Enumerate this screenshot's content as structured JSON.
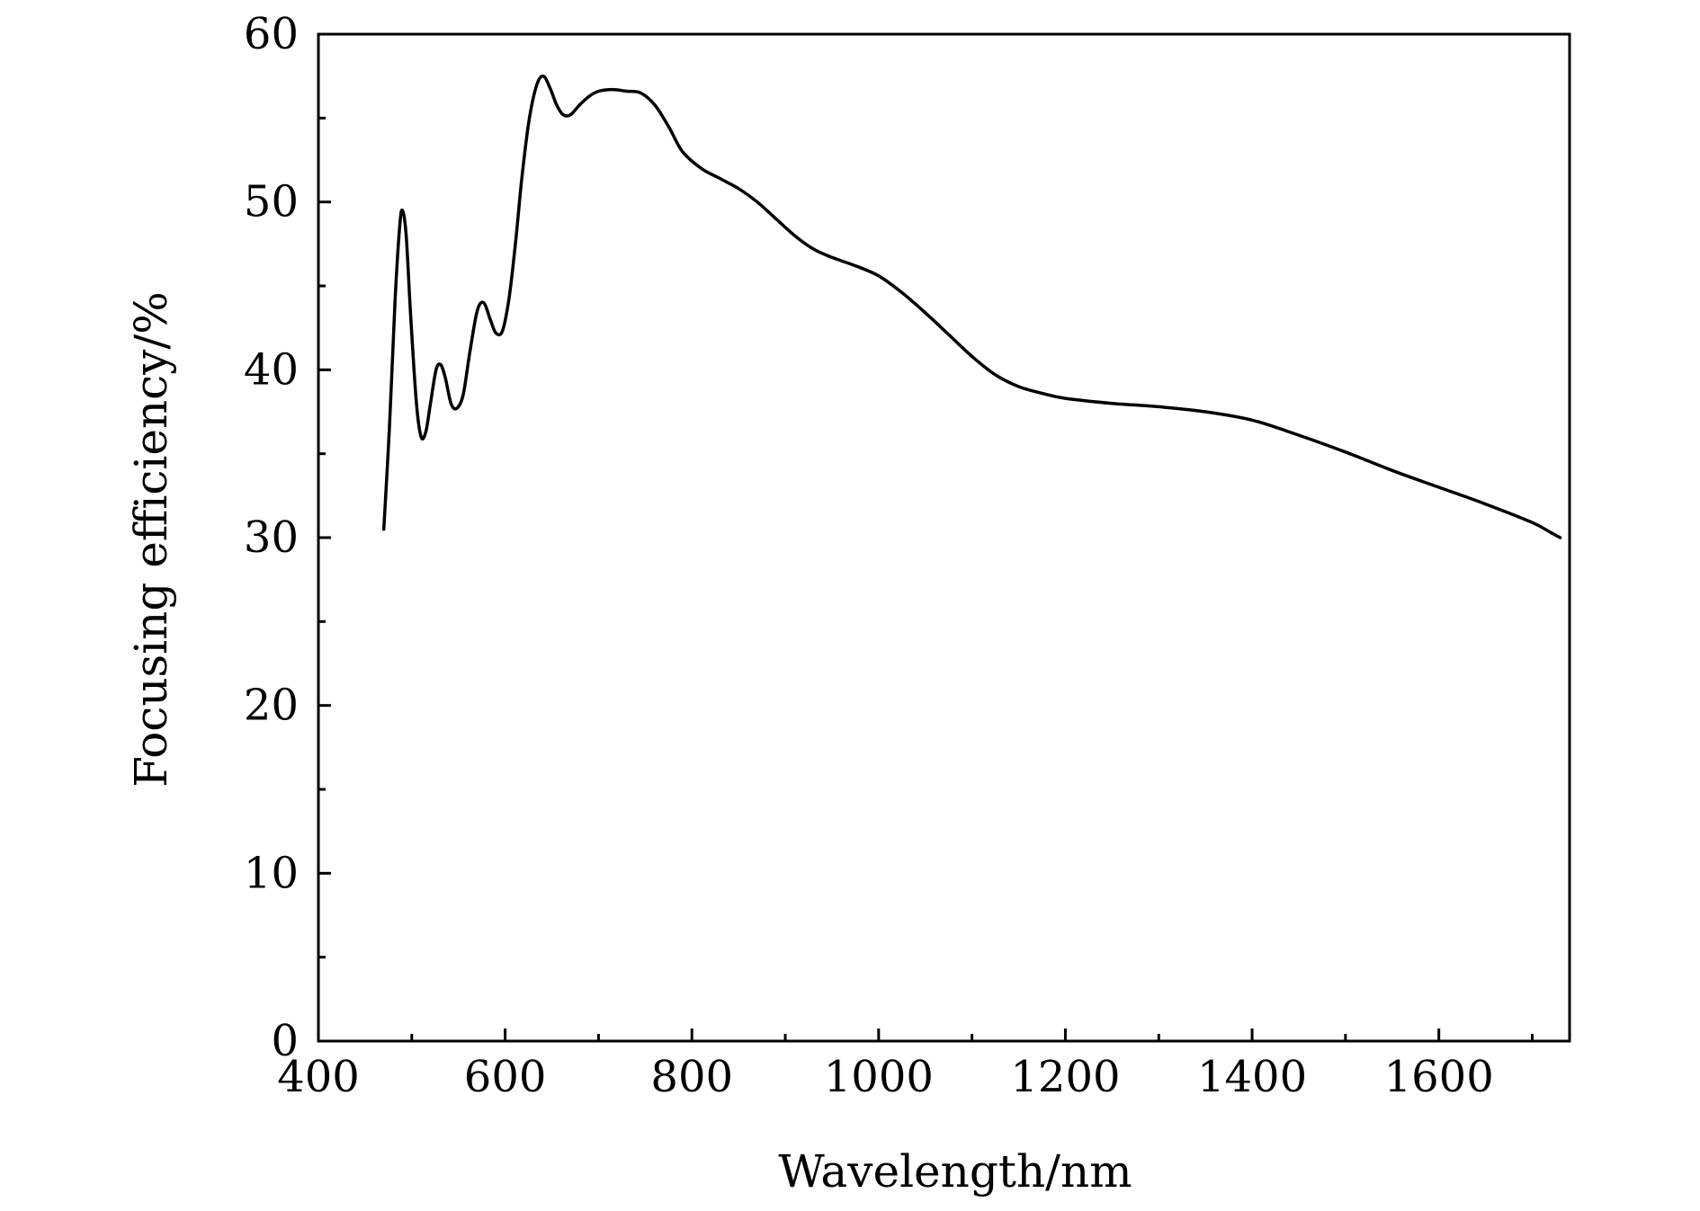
{
  "chart_data": {
    "type": "line",
    "title": "",
    "xlabel": "Wavelength/nm",
    "ylabel": "Focusing efficiency/%",
    "xlim": [
      400,
      1740
    ],
    "ylim": [
      0,
      60
    ],
    "xticks": [
      400,
      600,
      800,
      1000,
      1200,
      1400,
      1600
    ],
    "yticks": [
      0,
      10,
      20,
      30,
      40,
      50,
      60
    ],
    "x_minor_step": 100,
    "y_minor_step": 5,
    "grid": false,
    "legend": "none",
    "series": [
      {
        "color": "#000000",
        "points": [
          [
            470,
            30.5
          ],
          [
            476,
            36.5
          ],
          [
            482,
            44
          ],
          [
            487,
            48.5
          ],
          [
            490,
            49.5
          ],
          [
            494,
            48
          ],
          [
            499,
            43
          ],
          [
            505,
            38
          ],
          [
            510,
            36
          ],
          [
            515,
            36.3
          ],
          [
            520,
            38
          ],
          [
            526,
            40
          ],
          [
            531,
            40.3
          ],
          [
            536,
            39.5
          ],
          [
            542,
            38
          ],
          [
            548,
            37.7
          ],
          [
            555,
            38.5
          ],
          [
            562,
            41
          ],
          [
            570,
            43.5
          ],
          [
            577,
            44
          ],
          [
            584,
            43
          ],
          [
            590,
            42.2
          ],
          [
            597,
            42.3
          ],
          [
            604,
            44.2
          ],
          [
            611,
            47.5
          ],
          [
            618,
            51.5
          ],
          [
            626,
            55
          ],
          [
            634,
            57
          ],
          [
            641,
            57.5
          ],
          [
            648,
            56.8
          ],
          [
            655,
            55.8
          ],
          [
            662,
            55.2
          ],
          [
            670,
            55.2
          ],
          [
            680,
            55.8
          ],
          [
            690,
            56.3
          ],
          [
            700,
            56.6
          ],
          [
            715,
            56.7
          ],
          [
            730,
            56.6
          ],
          [
            745,
            56.5
          ],
          [
            760,
            55.8
          ],
          [
            775,
            54.5
          ],
          [
            790,
            53
          ],
          [
            810,
            52
          ],
          [
            830,
            51.4
          ],
          [
            850,
            50.8
          ],
          [
            870,
            50
          ],
          [
            890,
            49
          ],
          [
            910,
            48
          ],
          [
            930,
            47.2
          ],
          [
            950,
            46.7
          ],
          [
            975,
            46.2
          ],
          [
            1000,
            45.6
          ],
          [
            1025,
            44.6
          ],
          [
            1050,
            43.4
          ],
          [
            1075,
            42.1
          ],
          [
            1100,
            40.8
          ],
          [
            1125,
            39.7
          ],
          [
            1150,
            39
          ],
          [
            1175,
            38.6
          ],
          [
            1200,
            38.3
          ],
          [
            1250,
            38
          ],
          [
            1300,
            37.8
          ],
          [
            1350,
            37.5
          ],
          [
            1400,
            37
          ],
          [
            1450,
            36.1
          ],
          [
            1500,
            35.1
          ],
          [
            1550,
            34
          ],
          [
            1600,
            33
          ],
          [
            1650,
            32
          ],
          [
            1700,
            30.9
          ],
          [
            1720,
            30.3
          ],
          [
            1730,
            30
          ]
        ]
      }
    ]
  }
}
